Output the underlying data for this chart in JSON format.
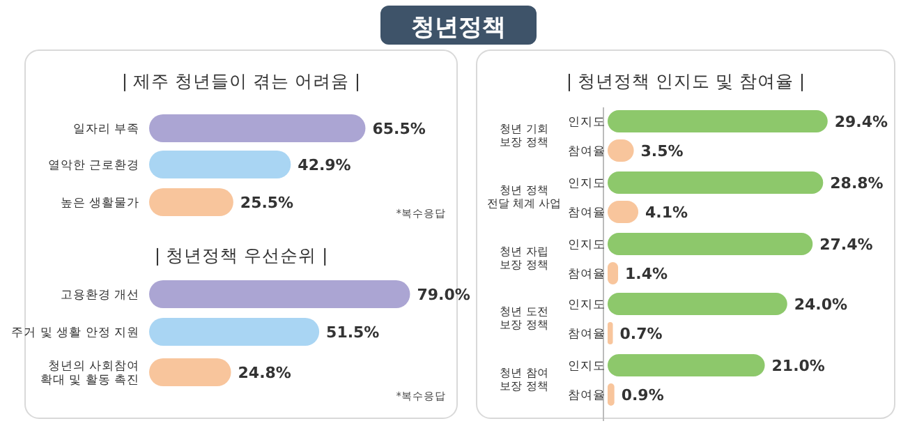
{
  "chart_data": [
    {
      "type": "other",
      "title": "청년정책"
    },
    {
      "type": "bar",
      "orientation": "horizontal",
      "title": "| 제주 청년들이 겪는 어려움 |",
      "categories": [
        "일자리 부족",
        "열악한 근로환경",
        "높은 생활물가"
      ],
      "values": [
        65.5,
        42.9,
        25.5
      ],
      "value_labels": [
        "65.5%",
        "42.9%",
        "25.5%"
      ],
      "colors": [
        "#aba5d3",
        "#a9d5f3",
        "#f8c59c"
      ],
      "annotations": [
        "*복수응답"
      ]
    },
    {
      "type": "bar",
      "orientation": "horizontal",
      "title": "| 청년정책 우선순위 |",
      "categories": [
        "고용환경 개선",
        "주거 및 생활 안정 지원",
        "청년의 사회참여\n확대 및 활동 촉진"
      ],
      "values": [
        79.0,
        51.5,
        24.8
      ],
      "value_labels": [
        "79.0%",
        "51.5%",
        "24.8%"
      ],
      "colors": [
        "#aba5d3",
        "#a9d5f3",
        "#f8c59c"
      ],
      "annotations": [
        "*복수응답"
      ]
    },
    {
      "type": "bar",
      "orientation": "horizontal",
      "title": "| 청년정책 인지도 및 참여율 |",
      "categories": [
        "청년 기회\n보장 정책",
        "청년 정책\n전달 체계 사업",
        "청년 자립\n보장 정책",
        "청년 도전\n보장 정책",
        "청년 참여\n보장 정책"
      ],
      "series": [
        {
          "name": "인지도",
          "color": "#8dc86b",
          "values": [
            29.4,
            28.8,
            27.4,
            24.0,
            21.0
          ],
          "value_labels": [
            "29.4%",
            "28.8%",
            "27.4%",
            "24.0%",
            "21.0%"
          ]
        },
        {
          "name": "참여율",
          "color": "#f8c59c",
          "values": [
            3.5,
            4.1,
            1.4,
            0.7,
            0.9
          ],
          "value_labels": [
            "3.5%",
            "4.1%",
            "1.4%",
            "0.7%",
            "0.9%"
          ]
        }
      ]
    }
  ]
}
